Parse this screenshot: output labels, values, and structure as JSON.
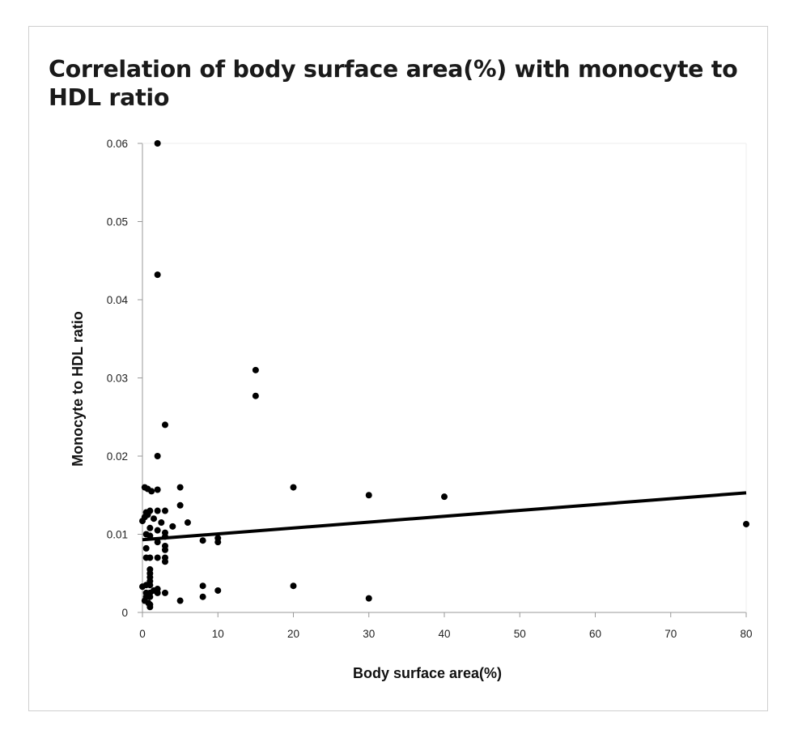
{
  "chart_data": {
    "type": "scatter",
    "title": "Correlation of body surface area(%) with monocyte to HDL ratio",
    "xlabel": "Body surface area(%)",
    "ylabel": "Monocyte to HDL ratio",
    "xlim": [
      0,
      80
    ],
    "ylim": [
      0,
      0.06
    ],
    "x_ticks": [
      "0",
      "10",
      "20",
      "30",
      "40",
      "50",
      "60",
      "70",
      "80"
    ],
    "y_ticks": [
      "0",
      "0.01",
      "0.02",
      "0.03",
      "0.04",
      "0.05",
      "0.06"
    ],
    "grid": false,
    "legend": "none",
    "colors": {
      "points": "#000000",
      "trend_line": "#000000",
      "axis": "#999999"
    },
    "trend_line": {
      "x": [
        0,
        80
      ],
      "y": [
        0.0093,
        0.0153
      ]
    },
    "points": [
      [
        2,
        0.06
      ],
      [
        2,
        0.0432
      ],
      [
        15,
        0.031
      ],
      [
        15,
        0.0277
      ],
      [
        3,
        0.024
      ],
      [
        2,
        0.02
      ],
      [
        0.3,
        0.016
      ],
      [
        0.7,
        0.0158
      ],
      [
        1.2,
        0.0155
      ],
      [
        2,
        0.0157
      ],
      [
        5,
        0.016
      ],
      [
        20,
        0.016
      ],
      [
        30,
        0.015
      ],
      [
        40,
        0.0148
      ],
      [
        80,
        0.0113
      ],
      [
        0.5,
        0.0128
      ],
      [
        1,
        0.013
      ],
      [
        2,
        0.013
      ],
      [
        3,
        0.013
      ],
      [
        5,
        0.0137
      ],
      [
        0.3,
        0.0122
      ],
      [
        0.7,
        0.0125
      ],
      [
        1.5,
        0.012
      ],
      [
        0,
        0.0117
      ],
      [
        2.5,
        0.0115
      ],
      [
        6,
        0.0115
      ],
      [
        4,
        0.011
      ],
      [
        1,
        0.0108
      ],
      [
        2,
        0.0105
      ],
      [
        3,
        0.0102
      ],
      [
        0.5,
        0.01
      ],
      [
        1,
        0.0098
      ],
      [
        3,
        0.0097
      ],
      [
        8,
        0.0092
      ],
      [
        10,
        0.0095
      ],
      [
        10,
        0.009
      ],
      [
        2,
        0.009
      ],
      [
        0.5,
        0.0082
      ],
      [
        3,
        0.0085
      ],
      [
        3,
        0.008
      ],
      [
        0.5,
        0.007
      ],
      [
        1,
        0.007
      ],
      [
        2,
        0.007
      ],
      [
        3,
        0.007
      ],
      [
        3,
        0.0065
      ],
      [
        1,
        0.0055
      ],
      [
        1,
        0.005
      ],
      [
        1,
        0.0045
      ],
      [
        1,
        0.004
      ],
      [
        0,
        0.0033
      ],
      [
        0.5,
        0.0035
      ],
      [
        1,
        0.0035
      ],
      [
        2,
        0.003
      ],
      [
        1.5,
        0.0028
      ],
      [
        3,
        0.0025
      ],
      [
        8,
        0.0034
      ],
      [
        20,
        0.0034
      ],
      [
        10,
        0.0028
      ],
      [
        0.5,
        0.0025
      ],
      [
        1,
        0.0025
      ],
      [
        2,
        0.0025
      ],
      [
        0.5,
        0.002
      ],
      [
        1,
        0.002
      ],
      [
        8,
        0.002
      ],
      [
        5,
        0.0015
      ],
      [
        30,
        0.0018
      ],
      [
        0.3,
        0.0015
      ],
      [
        0.8,
        0.0012
      ],
      [
        1,
        0.001
      ],
      [
        1,
        0.0007
      ]
    ]
  }
}
